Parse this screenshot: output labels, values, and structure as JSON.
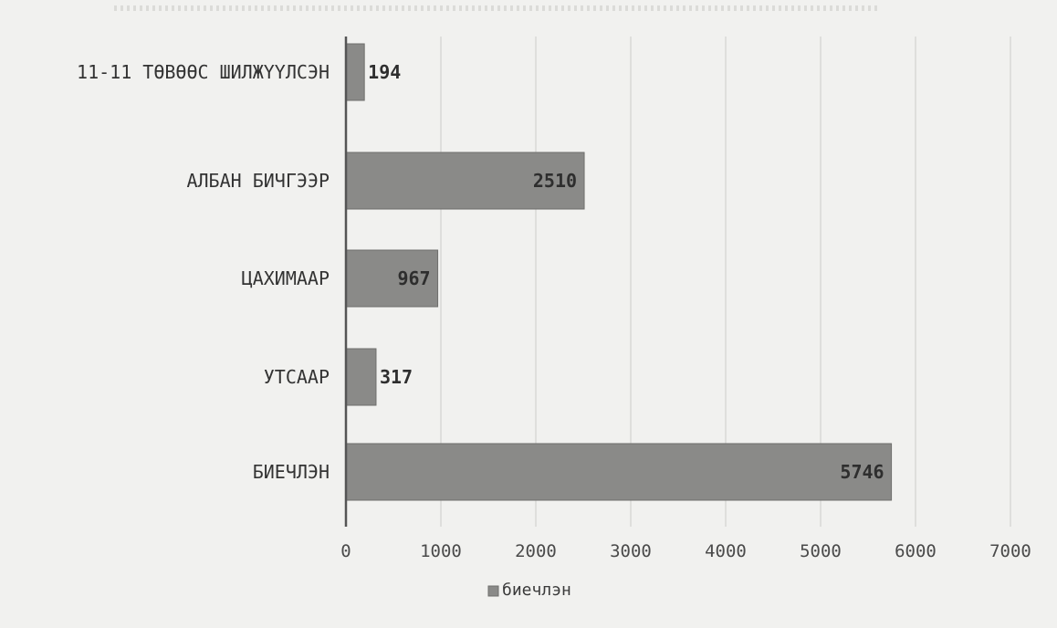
{
  "chart_data": {
    "type": "bar",
    "orientation": "horizontal",
    "categories": [
      "11-11 ТӨВӨӨС ШИЛЖҮҮЛСЭН",
      "АЛБАН БИЧГЭЭР",
      "ЦАХИМААР",
      "УТСААР",
      "БИЕЧЛЭН"
    ],
    "series": [
      {
        "name": "биечлэн",
        "values": [
          194,
          2510,
          967,
          317,
          5746
        ],
        "labels": [
          "194",
          "2510",
          "967",
          "317",
          "5746"
        ]
      }
    ],
    "xlim": [
      0,
      7000
    ],
    "ticks": [
      0,
      1000,
      2000,
      3000,
      4000,
      5000,
      6000,
      7000
    ],
    "tick_labels": [
      "0",
      "1000",
      "2000",
      "3000",
      "4000",
      "5000",
      "6000",
      "7000"
    ],
    "grid": true,
    "legend": {
      "placement": "bottom",
      "entries": [
        "биечлэн"
      ]
    },
    "colors": {
      "bar": "#8a8a88",
      "bar_edge": "#6f6f6d",
      "axis": "#555555",
      "grid": "#d3d3d0",
      "label": "#333333",
      "background": "#f1f1ef"
    }
  }
}
